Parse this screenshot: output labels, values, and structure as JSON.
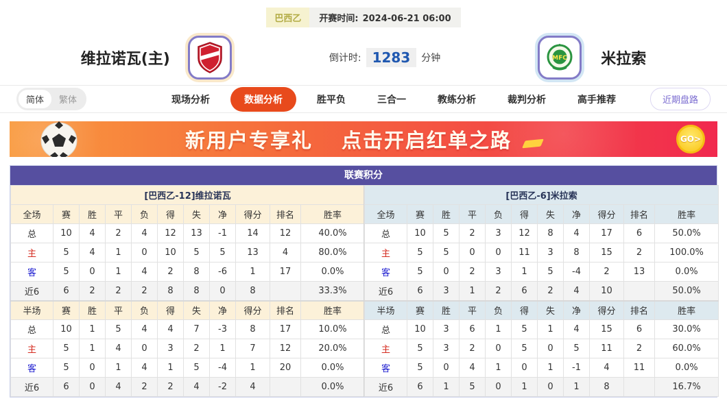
{
  "header": {
    "league": "巴西乙",
    "kickoff_label": "开赛时间:",
    "kickoff_time": "2024-06-21 06:00",
    "home_name": "维拉诺瓦(主)",
    "away_name": "米拉索",
    "away_logo_text": "MFC",
    "countdown_label": "倒计时:",
    "countdown_value": "1283",
    "countdown_unit": "分钟"
  },
  "nav": {
    "lang_simplified": "简体",
    "lang_traditional": "繁体",
    "tabs": [
      {
        "label": "现场分析",
        "active": false
      },
      {
        "label": "数据分析",
        "active": true
      },
      {
        "label": "胜平负",
        "active": false
      },
      {
        "label": "三合一",
        "active": false
      },
      {
        "label": "教练分析",
        "active": false
      },
      {
        "label": "裁判分析",
        "active": false
      },
      {
        "label": "高手推荐",
        "active": false
      }
    ],
    "recent_trend": "近期盘路"
  },
  "banner": {
    "headline_1": "新用户专享礼",
    "headline_2": "点击开启红单之路",
    "go_label": "GO>"
  },
  "standings": {
    "title": "联赛积分",
    "home_team_header": "[巴西乙-12]维拉诺瓦",
    "away_team_header": "[巴西乙-6]米拉索",
    "full_label": "全场",
    "half_label": "半场",
    "columns": [
      "赛",
      "胜",
      "平",
      "负",
      "得",
      "失",
      "净",
      "得分",
      "排名",
      "胜率"
    ],
    "home": {
      "full": [
        {
          "label": "总",
          "type": "total",
          "cells": [
            "10",
            "4",
            "2",
            "4",
            "12",
            "13",
            "-1",
            "14",
            "12",
            "40.0%"
          ]
        },
        {
          "label": "主",
          "type": "home",
          "cells": [
            "5",
            "4",
            "1",
            "0",
            "10",
            "5",
            "5",
            "13",
            "4",
            "80.0%"
          ]
        },
        {
          "label": "客",
          "type": "away",
          "cells": [
            "5",
            "0",
            "1",
            "4",
            "2",
            "8",
            "-6",
            "1",
            "17",
            "0.0%"
          ]
        },
        {
          "label": "近6",
          "type": "recent",
          "cells": [
            "6",
            "2",
            "2",
            "2",
            "8",
            "8",
            "0",
            "8",
            "",
            "33.3%"
          ]
        }
      ],
      "half": [
        {
          "label": "总",
          "type": "total",
          "cells": [
            "10",
            "1",
            "5",
            "4",
            "4",
            "7",
            "-3",
            "8",
            "17",
            "10.0%"
          ]
        },
        {
          "label": "主",
          "type": "home",
          "cells": [
            "5",
            "1",
            "4",
            "0",
            "3",
            "2",
            "1",
            "7",
            "12",
            "20.0%"
          ]
        },
        {
          "label": "客",
          "type": "away",
          "cells": [
            "5",
            "0",
            "1",
            "4",
            "1",
            "5",
            "-4",
            "1",
            "20",
            "0.0%"
          ]
        },
        {
          "label": "近6",
          "type": "recent",
          "cells": [
            "6",
            "0",
            "4",
            "2",
            "2",
            "4",
            "-2",
            "4",
            "",
            "0.0%"
          ]
        }
      ]
    },
    "away": {
      "full": [
        {
          "label": "总",
          "type": "total",
          "cells": [
            "10",
            "5",
            "2",
            "3",
            "12",
            "8",
            "4",
            "17",
            "6",
            "50.0%"
          ]
        },
        {
          "label": "主",
          "type": "home",
          "cells": [
            "5",
            "5",
            "0",
            "0",
            "11",
            "3",
            "8",
            "15",
            "2",
            "100.0%"
          ]
        },
        {
          "label": "客",
          "type": "away",
          "cells": [
            "5",
            "0",
            "2",
            "3",
            "1",
            "5",
            "-4",
            "2",
            "13",
            "0.0%"
          ]
        },
        {
          "label": "近6",
          "type": "recent",
          "cells": [
            "6",
            "3",
            "1",
            "2",
            "6",
            "2",
            "4",
            "10",
            "",
            "50.0%"
          ]
        }
      ],
      "half": [
        {
          "label": "总",
          "type": "total",
          "cells": [
            "10",
            "3",
            "6",
            "1",
            "5",
            "1",
            "4",
            "15",
            "6",
            "30.0%"
          ]
        },
        {
          "label": "主",
          "type": "home",
          "cells": [
            "5",
            "3",
            "2",
            "0",
            "5",
            "0",
            "5",
            "11",
            "2",
            "60.0%"
          ]
        },
        {
          "label": "客",
          "type": "away",
          "cells": [
            "5",
            "0",
            "4",
            "1",
            "0",
            "1",
            "-1",
            "4",
            "11",
            "0.0%"
          ]
        },
        {
          "label": "近6",
          "type": "recent",
          "cells": [
            "6",
            "1",
            "5",
            "0",
            "1",
            "0",
            "1",
            "8",
            "",
            "16.7%"
          ]
        }
      ]
    }
  },
  "colors": {
    "accent_orange": "#e84a1c",
    "title_purple": "#564fa0",
    "home_label_red": "#d42a1e",
    "away_label_blue": "#1f1fd0",
    "countdown_blue": "#2058b0"
  }
}
